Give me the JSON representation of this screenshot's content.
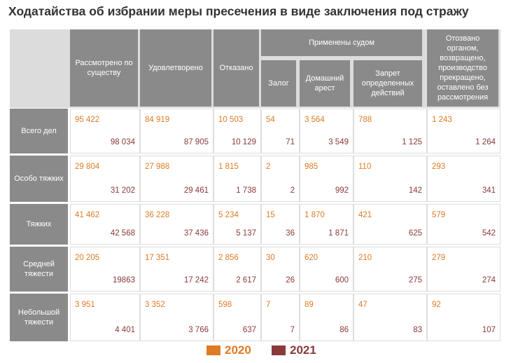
{
  "title": "Ходатайства об избрании меры пресечения в виде заключения под стражу",
  "column_group": "Применены судом",
  "columns": [
    "Рассмотрено по существу",
    "Удовлетворено",
    "Отказано",
    "Залог",
    "Домашний арест",
    "Запрет определенных действий",
    "Отозвано органом, возвращено, производство прекращено, оставлено без рассмотрения"
  ],
  "rows": [
    {
      "label": "Всего дел",
      "values_2020": [
        "95 422",
        "84 919",
        "10 503",
        "54",
        "3 564",
        "788",
        "1 243"
      ],
      "values_2021": [
        "98 034",
        "87 905",
        "10 129",
        "71",
        "3 549",
        "1 125",
        "1 264"
      ]
    },
    {
      "label": "Особо тяжких",
      "values_2020": [
        "29 804",
        "27 988",
        "1 815",
        "2",
        "985",
        "110",
        "293"
      ],
      "values_2021": [
        "31 202",
        "29 461",
        "1 738",
        "2",
        "992",
        "142",
        "341"
      ]
    },
    {
      "label": "Тяжких",
      "values_2020": [
        "41 462",
        "36 228",
        "5 234",
        "15",
        "1 870",
        "421",
        "579"
      ],
      "values_2021": [
        "42 568",
        "37 436",
        "5 137",
        "36",
        "1 871",
        "625",
        "542"
      ]
    },
    {
      "label": "Средней тяжести",
      "values_2020": [
        "20 205",
        "17 351",
        "2 856",
        "30",
        "620",
        "210",
        "279"
      ],
      "values_2021": [
        "19863",
        "17 242",
        "2 617",
        "26",
        "600",
        "275",
        "274"
      ]
    },
    {
      "label": "Небольшой тяжести",
      "values_2020": [
        "3 951",
        "3 352",
        "598",
        "7",
        "89",
        "47",
        "92"
      ],
      "values_2021": [
        "4 401",
        "3 766",
        "637",
        "7",
        "86",
        "83",
        "107"
      ]
    }
  ],
  "legend": [
    "2020",
    "2021"
  ]
}
